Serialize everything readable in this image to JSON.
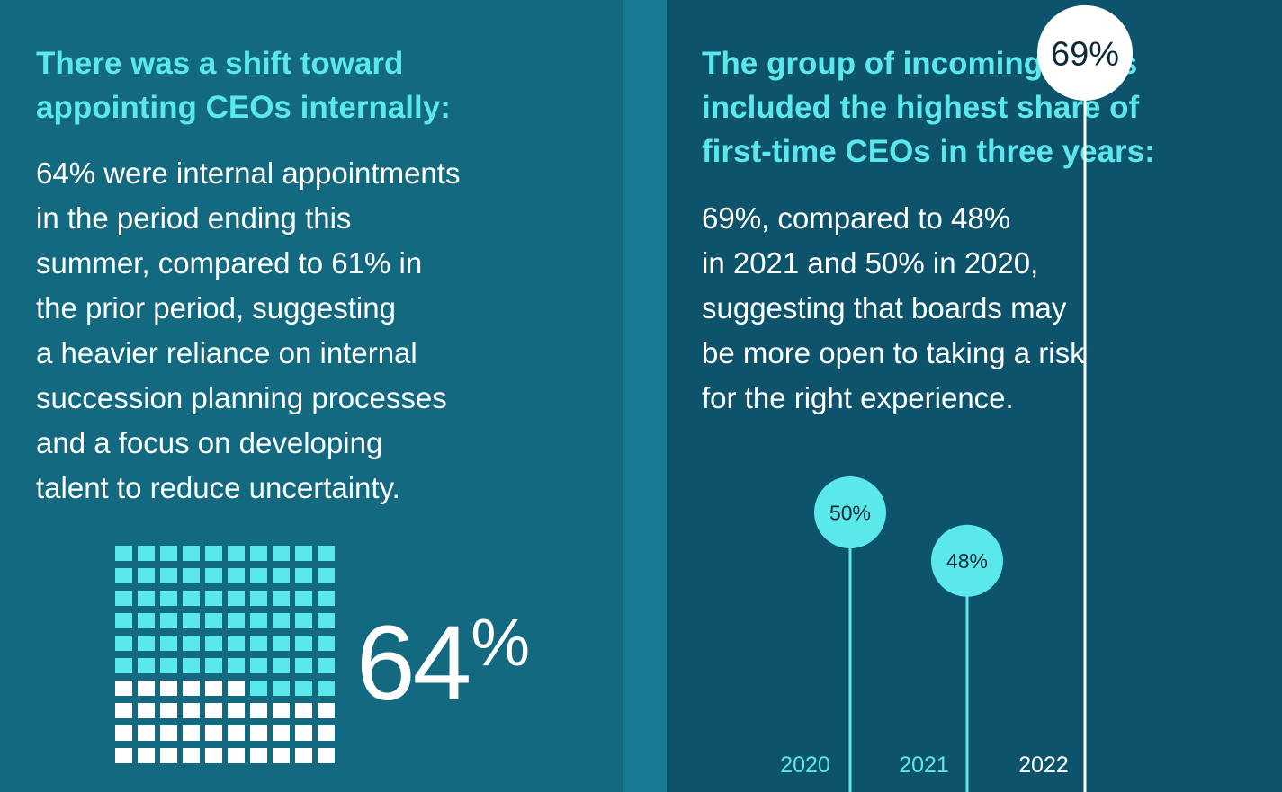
{
  "left": {
    "heading": "There was a shift toward\nappointing CEOs internally:",
    "body": "64% were internal appointments\nin the period ending this\nsummer, compared to 61% in\nthe prior period, suggesting\na heavier reliance on internal\nsuccession planning processes\nand a focus on developing\ntalent to reduce uncertainty.",
    "big_value": "64",
    "big_unit": "%"
  },
  "right": {
    "heading": "The group of incoming CEOs\nincluded the highest share of\nfirst-time CEOs in three years:",
    "body": "69%, compared to 48%\nin 2021 and 50% in 2020,\nsuggesting that boards may\nbe more open to taking a risk\nfor the right experience."
  },
  "colors": {
    "left_background": "#136980",
    "right_background": "#0d536b",
    "divider": "#197a93",
    "accent": "#5ae8ea",
    "white": "#ffffff",
    "dark_text": "#0d2a3a"
  },
  "chart_data": [
    {
      "type": "waffle",
      "total": 100,
      "value": 64,
      "grid": [
        10,
        10
      ]
    },
    {
      "type": "lollipop",
      "categories": [
        "2020",
        "2021",
        "2022"
      ],
      "values": [
        50,
        48,
        69
      ],
      "labels": [
        "50%",
        "48%",
        "69%"
      ],
      "highlight": "2022"
    }
  ]
}
